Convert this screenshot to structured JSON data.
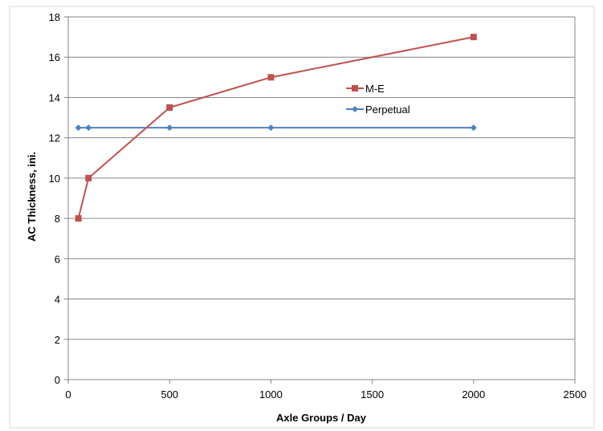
{
  "chart_data": {
    "type": "line",
    "xlabel": "Axle Groups / Day",
    "ylabel": "AC Thickness, ini.",
    "xlim": [
      0,
      2500
    ],
    "ylim": [
      0,
      18
    ],
    "xticks": [
      0,
      500,
      1000,
      1500,
      2000,
      2500
    ],
    "yticks": [
      0,
      2,
      4,
      6,
      8,
      10,
      12,
      14,
      16,
      18
    ],
    "x_tick_labels": [
      "0",
      "500",
      "1000",
      "1500",
      "2000",
      "2500"
    ],
    "y_tick_labels": [
      "0",
      "2",
      "4",
      "6",
      "8",
      "10",
      "12",
      "14",
      "16",
      "18"
    ],
    "grid": "horizontal",
    "legend_position": "inside-right",
    "series": [
      {
        "name": "M-E",
        "color": "#c0504d",
        "marker": "square",
        "x": [
          50,
          100,
          500,
          1000,
          2000
        ],
        "y": [
          8,
          10,
          13.5,
          15,
          17
        ]
      },
      {
        "name": "Perpetual",
        "color": "#4f81bd",
        "marker": "diamond",
        "x": [
          50,
          100,
          500,
          1000,
          2000
        ],
        "y": [
          12.5,
          12.5,
          12.5,
          12.5,
          12.5
        ]
      }
    ]
  }
}
